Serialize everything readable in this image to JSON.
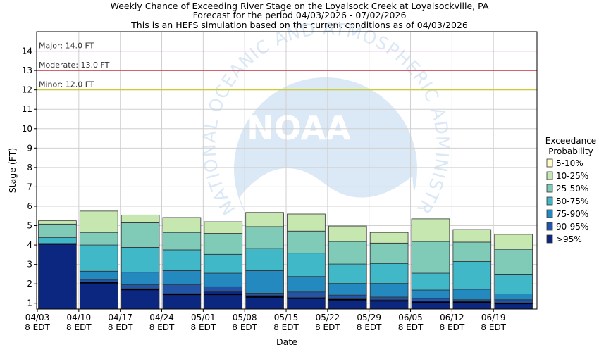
{
  "chart_data": {
    "type": "bar",
    "subtype": "stacked-exceedance",
    "title": [
      "Weekly Chance of Exceeding River Stage on the Loyalsock Creek at Loyalsockville, PA",
      "Forecast for the period 04/03/2026 - 07/02/2026",
      "This is an HEFS simulation based on the current conditions as of 04/03/2026"
    ],
    "xlabel": "Date",
    "ylabel": "Stage (FT)",
    "ylim": [
      0.7,
      15
    ],
    "yticks": [
      1,
      2,
      3,
      4,
      5,
      6,
      7,
      8,
      9,
      10,
      11,
      12,
      13,
      14
    ],
    "xticks": [
      {
        "date": "04/03",
        "time": "8 EDT"
      },
      {
        "date": "04/10",
        "time": "8 EDT"
      },
      {
        "date": "04/17",
        "time": "8 EDT"
      },
      {
        "date": "04/24",
        "time": "8 EDT"
      },
      {
        "date": "05/01",
        "time": "8 EDT"
      },
      {
        "date": "05/08",
        "time": "8 EDT"
      },
      {
        "date": "05/15",
        "time": "8 EDT"
      },
      {
        "date": "05/22",
        "time": "8 EDT"
      },
      {
        "date": "05/29",
        "time": "8 EDT"
      },
      {
        "date": "06/05",
        "time": "8 EDT"
      },
      {
        "date": "06/12",
        "time": "8 EDT"
      },
      {
        "date": "06/19",
        "time": "8 EDT"
      }
    ],
    "grid": true,
    "flood_levels": [
      {
        "label": "Major: 14.0 FT",
        "value": 14.0,
        "color": "#cc33cc"
      },
      {
        "label": "Moderate: 13.0 FT",
        "value": 13.0,
        "color": "#cc3344"
      },
      {
        "label": "Minor: 12.0 FT",
        "value": 12.0,
        "color": "#cccc33"
      }
    ],
    "legend": {
      "title": [
        "Exceedance",
        "Probability"
      ],
      "placement": "right",
      "entries": [
        {
          "label": "5-10%",
          "color": "#ffffc4"
        },
        {
          "label": "10-25%",
          "color": "#c6e8b0"
        },
        {
          "label": "25-50%",
          "color": "#80cbb8"
        },
        {
          "label": "50-75%",
          "color": "#41b8c8"
        },
        {
          "label": "75-90%",
          "color": "#2489bf"
        },
        {
          "label": "90-95%",
          "color": "#2255a8"
        },
        {
          "label": ">95%",
          "color": "#0c2780"
        }
      ]
    },
    "weeks": [
      {
        "min": 4.05,
        "levels": [
          4.05,
          4.06,
          4.08,
          4.38,
          5.08,
          5.25
        ]
      },
      {
        "min": 2.05,
        "levels": [
          2.1,
          2.2,
          2.65,
          4.0,
          4.65,
          5.75
        ]
      },
      {
        "min": 1.7,
        "levels": [
          1.75,
          1.95,
          2.6,
          3.88,
          5.15,
          5.55
        ]
      },
      {
        "min": 1.45,
        "levels": [
          1.5,
          1.95,
          2.68,
          3.75,
          4.65,
          5.42
        ]
      },
      {
        "min": 1.45,
        "levels": [
          1.6,
          1.85,
          2.55,
          3.52,
          4.6,
          5.2
        ]
      },
      {
        "min": 1.32,
        "levels": [
          1.4,
          1.52,
          2.68,
          3.82,
          4.95,
          5.68
        ]
      },
      {
        "min": 1.25,
        "levels": [
          1.3,
          1.58,
          2.38,
          3.58,
          4.72,
          5.6
        ]
      },
      {
        "min": 1.18,
        "levels": [
          1.22,
          1.42,
          2.02,
          3.02,
          4.18,
          4.98
        ]
      },
      {
        "min": 1.12,
        "levels": [
          1.18,
          1.32,
          2.02,
          3.05,
          4.1,
          4.65
        ]
      },
      {
        "min": 1.05,
        "levels": [
          1.12,
          1.25,
          1.68,
          2.55,
          4.18,
          5.35
        ]
      },
      {
        "min": 1.05,
        "levels": [
          1.1,
          1.18,
          1.72,
          3.15,
          4.15,
          4.8
        ]
      },
      {
        "min": 0.98,
        "levels": [
          1.02,
          1.18,
          1.48,
          2.5,
          3.78,
          4.55
        ]
      }
    ]
  },
  "watermark": {
    "logo_text": "NOAA",
    "ring_text": "NATIONAL OCEANIC AND ATMOSPHERIC ADMINISTRATION"
  }
}
